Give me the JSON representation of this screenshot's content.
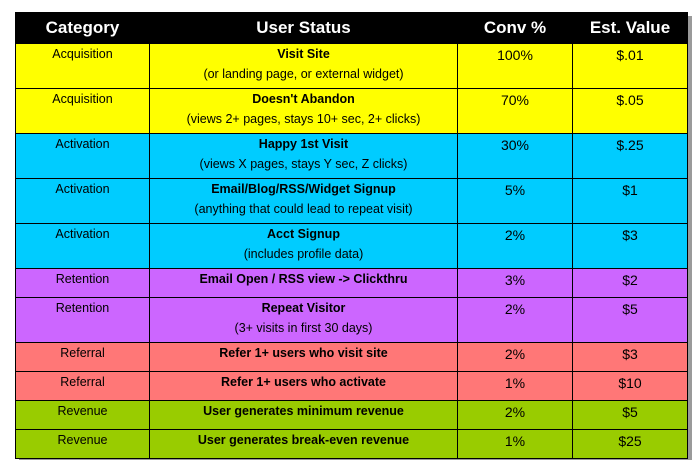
{
  "table": {
    "headers": [
      "Category",
      "User Status",
      "Conv %",
      "Est. Value"
    ],
    "rows": [
      {
        "category": "Acquisition",
        "title": "Visit Site",
        "subtitle": "(or landing page, or external widget)",
        "conv": "100%",
        "value": "$.01"
      },
      {
        "category": "Acquisition",
        "title": "Doesn't Abandon",
        "subtitle": "(views 2+ pages, stays 10+ sec, 2+ clicks)",
        "conv": "70%",
        "value": "$.05"
      },
      {
        "category": "Activation",
        "title": "Happy 1st Visit",
        "subtitle": "(views X pages, stays Y sec, Z clicks)",
        "conv": "30%",
        "value": "$.25"
      },
      {
        "category": "Activation",
        "title": "Email/Blog/RSS/Widget Signup",
        "subtitle": "(anything that could lead to repeat visit)",
        "conv": "5%",
        "value": "$1"
      },
      {
        "category": "Activation",
        "title": "Acct Signup",
        "subtitle": "(includes profile data)",
        "conv": "2%",
        "value": "$3"
      },
      {
        "category": "Retention",
        "title": "Email Open / RSS view -> Clickthru",
        "conv": "3%",
        "value": "$2"
      },
      {
        "category": "Retention",
        "title": "Repeat Visitor",
        "subtitle": "(3+ visits in first 30 days)",
        "conv": "2%",
        "value": "$5"
      },
      {
        "category": "Referral",
        "title": "Refer 1+ users who visit site",
        "conv": "2%",
        "value": "$3"
      },
      {
        "category": "Referral",
        "title": "Refer 1+ users who activate",
        "conv": "1%",
        "value": "$10"
      },
      {
        "category": "Revenue",
        "title": "User generates minimum revenue",
        "conv": "2%",
        "value": "$5"
      },
      {
        "category": "Revenue",
        "title": "User generates break-even revenue",
        "conv": "1%",
        "value": "$25"
      }
    ]
  }
}
